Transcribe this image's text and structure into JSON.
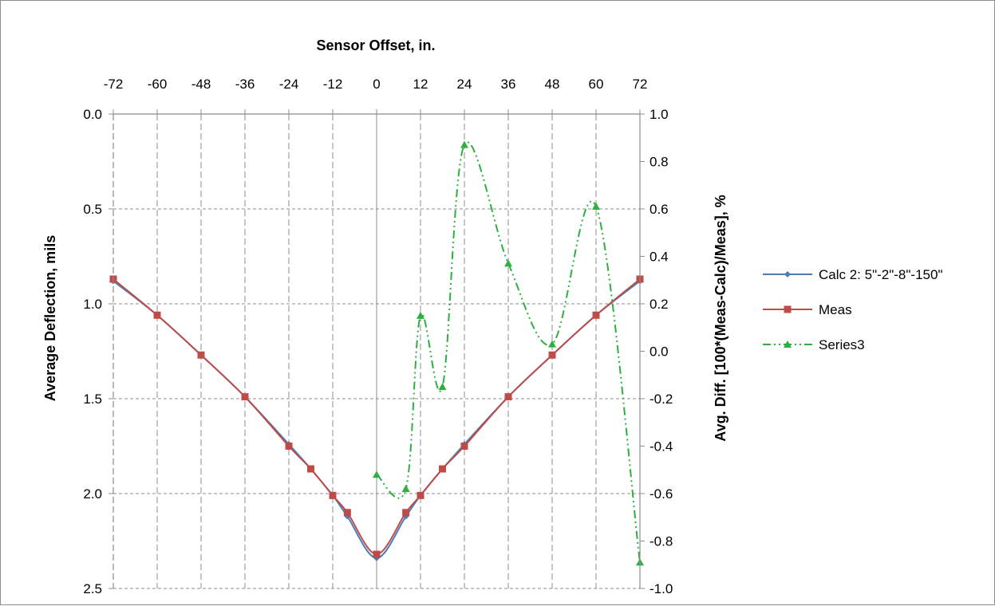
{
  "chart_data": {
    "type": "line",
    "title": "",
    "xlabel": "Sensor Offset, in.",
    "ylabel": "Average Deflection, mils",
    "y2label": "Avg. Diff. [100*(Meas-Calc)/Meas], %",
    "xlim": [
      -72,
      72
    ],
    "x_ticks": [
      "-72",
      "-60",
      "-48",
      "-36",
      "-24",
      "-12",
      "0",
      "12",
      "24",
      "36",
      "48",
      "60",
      "72"
    ],
    "ylim": [
      0,
      2.5
    ],
    "y_reversed": true,
    "y_ticks": [
      "0.0",
      "0.5",
      "1.0",
      "1.5",
      "2.0",
      "2.5"
    ],
    "y2lim": [
      -1.0,
      1.0
    ],
    "y2_ticks": [
      "1.0",
      "0.8",
      "0.6",
      "0.4",
      "0.2",
      "0.0",
      "-0.2",
      "-0.4",
      "-0.6",
      "-0.8",
      "-1.0"
    ],
    "x_axis_position": "top",
    "grid": true,
    "legend_position": "right",
    "series": [
      {
        "name": "Calc 2: 5\"-2\"-8\"-150\"",
        "axis": "left",
        "color": "#4a7ebb",
        "marker": "diamond",
        "x": [
          -72,
          -60,
          -48,
          -36,
          -24,
          -18,
          -12,
          -8,
          0,
          8,
          12,
          18,
          24,
          36,
          48,
          60,
          72
        ],
        "y": [
          0.88,
          1.06,
          1.27,
          1.49,
          1.74,
          1.87,
          2.01,
          2.12,
          2.34,
          2.12,
          2.01,
          1.87,
          1.74,
          1.49,
          1.27,
          1.06,
          0.88
        ]
      },
      {
        "name": "Meas",
        "axis": "left",
        "color": "#be4b48",
        "marker": "square",
        "x": [
          -72,
          -60,
          -48,
          -36,
          -24,
          -18,
          -12,
          -8,
          0,
          8,
          12,
          18,
          24,
          36,
          48,
          60,
          72
        ],
        "y": [
          0.87,
          1.06,
          1.27,
          1.49,
          1.75,
          1.87,
          2.01,
          2.1,
          2.32,
          2.1,
          2.01,
          1.87,
          1.75,
          1.49,
          1.27,
          1.06,
          0.87
        ]
      },
      {
        "name": "Series3",
        "axis": "right",
        "color": "#2db041",
        "marker": "triangle",
        "x": [
          0,
          8,
          12,
          18,
          24,
          36,
          48,
          60,
          72
        ],
        "y": [
          -0.52,
          -0.58,
          0.15,
          -0.15,
          0.87,
          0.37,
          0.03,
          0.61,
          -0.89
        ]
      }
    ]
  }
}
